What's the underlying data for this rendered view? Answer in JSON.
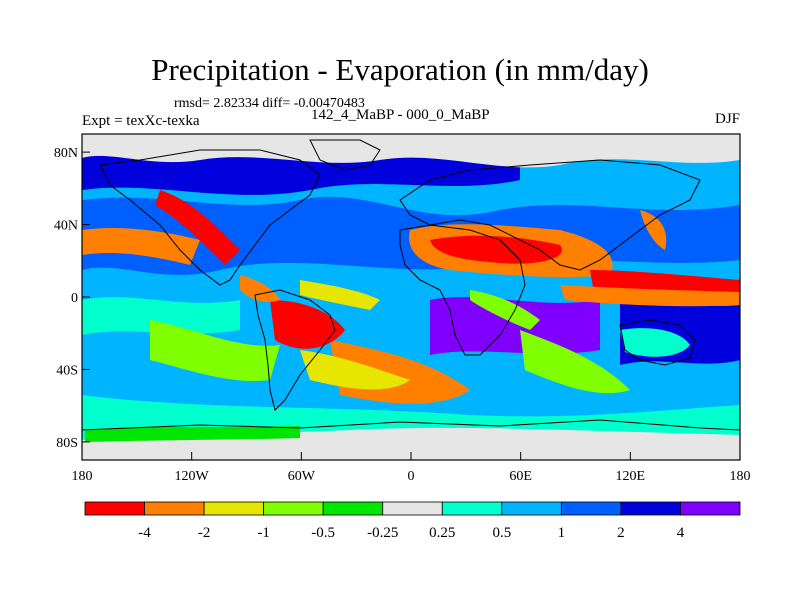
{
  "title": "Precipitation - Evaporation (in mm/day)",
  "stats": "rmsd= 2.82334 diff= -0.00470483",
  "expt": "Expt = texXc-texka",
  "difference_label": "142_4_MaBP - 000_0_MaBP",
  "season": "DJF",
  "map": {
    "projection": "cylindrical equidistant",
    "lon_range": [
      -180,
      180
    ],
    "lat_range": [
      -90,
      90
    ],
    "lon_ticks": [
      {
        "value": -180,
        "label": "180"
      },
      {
        "value": -120,
        "label": "120W"
      },
      {
        "value": -60,
        "label": "60W"
      },
      {
        "value": 0,
        "label": "0"
      },
      {
        "value": 60,
        "label": "60E"
      },
      {
        "value": 120,
        "label": "120E"
      },
      {
        "value": 180,
        "label": "180"
      }
    ],
    "lat_ticks": [
      {
        "value": 80,
        "label": "80N"
      },
      {
        "value": 40,
        "label": "40N"
      },
      {
        "value": 0,
        "label": "0"
      },
      {
        "value": -40,
        "label": "40S"
      },
      {
        "value": -80,
        "label": "80S"
      }
    ]
  },
  "colorbar": {
    "colors": [
      "#ff0000",
      "#ff8000",
      "#e6e600",
      "#80ff00",
      "#00e600",
      "#e6e6e6",
      "#00ffcc",
      "#00b4ff",
      "#0060ff",
      "#0000dd",
      "#8000ff"
    ],
    "labels": [
      "-4",
      "-2",
      "-1",
      "-0.5",
      "-0.25",
      "0.25",
      "0.5",
      "1",
      "2",
      "4"
    ]
  }
}
